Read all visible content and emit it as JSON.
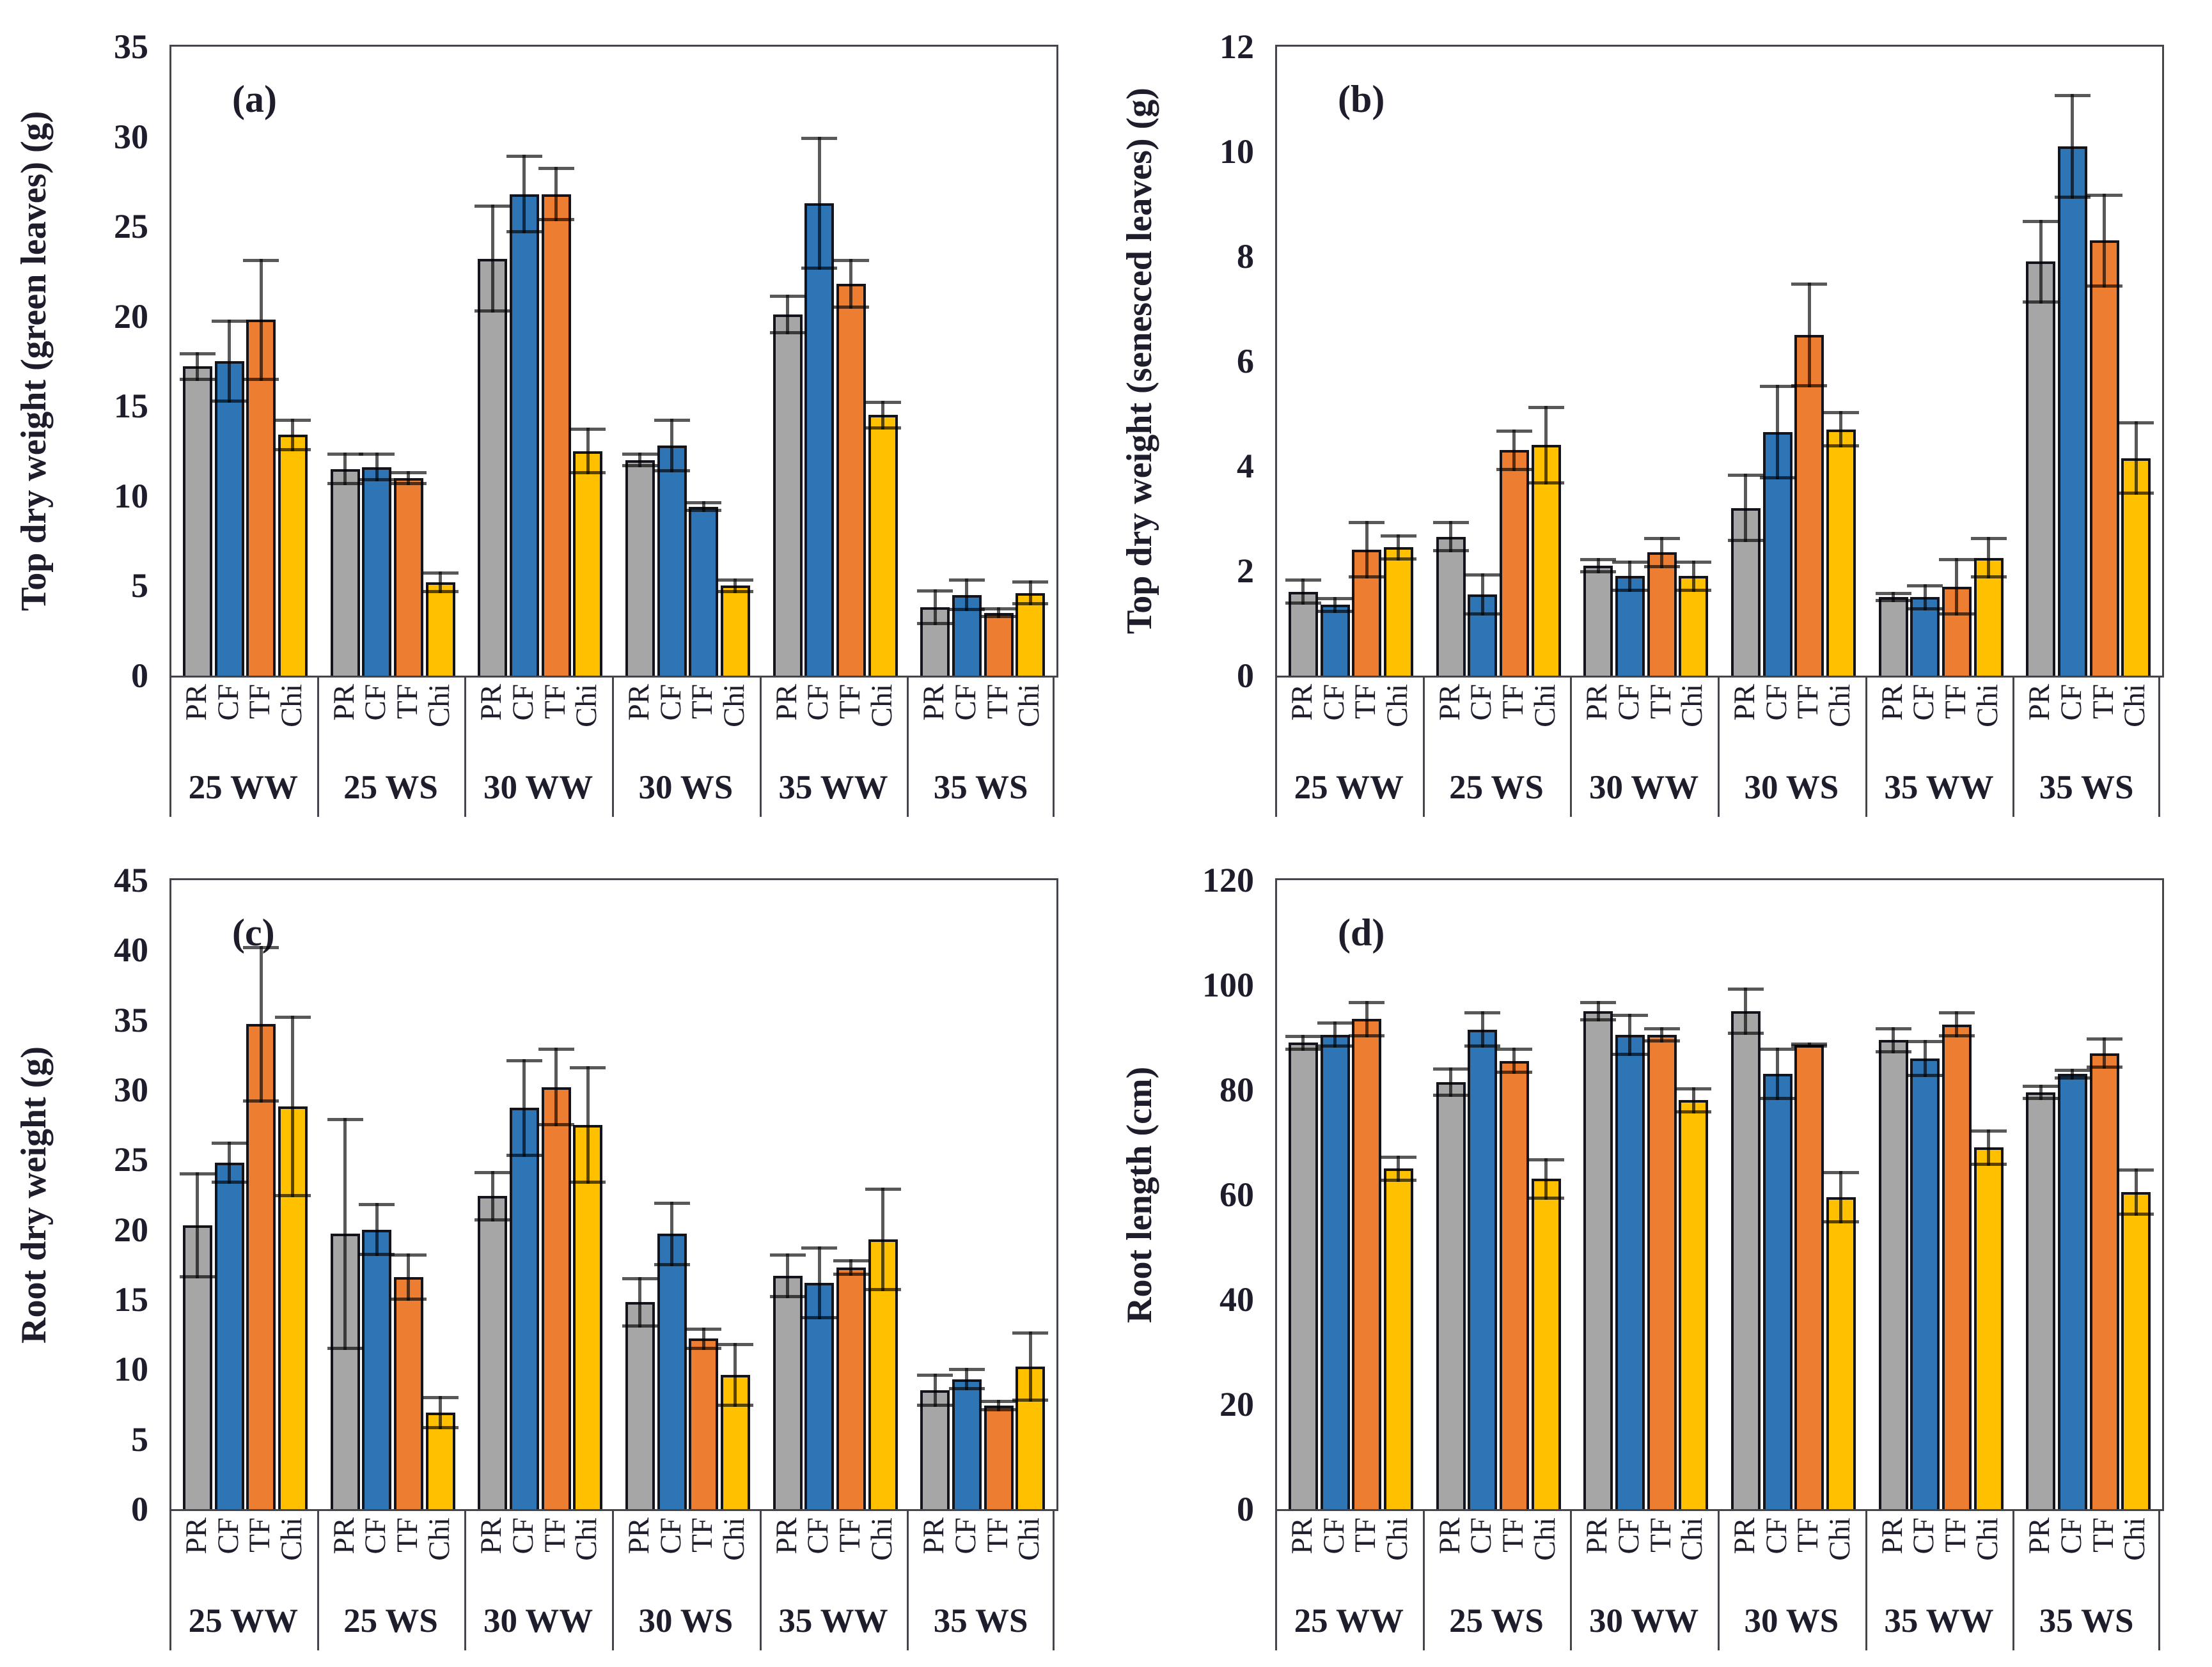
{
  "figure": {
    "description_visible_text_only": "Four-panel grouped bar figure",
    "panel_letters": [
      "(a)",
      "(b)",
      "(c)",
      "(d)"
    ]
  },
  "style": {
    "palette": {
      "PR": "#A6A6A6",
      "CF": "#2E75B6",
      "TF": "#ED7D31",
      "Chi": "#FFC000"
    },
    "bar_outline": "#14141c",
    "error_bar_color": "#595959",
    "axis_color": "#44444c",
    "text_color": "#1d1d2b"
  },
  "chart_data": [
    {
      "type": "bar",
      "panel_label": "(a)",
      "ylabel": "Top dry weight (green leaves) (g)",
      "ymax": 35,
      "yticks": [
        0,
        5,
        10,
        15,
        20,
        25,
        30,
        35
      ],
      "series_labels": [
        "PR",
        "CF",
        "TF",
        "Chi"
      ],
      "categories": [
        "25 WW",
        "25 WS",
        "30 WW",
        "30 WS",
        "35 WW",
        "35 WS"
      ],
      "groups": [
        {
          "label": "25 WW",
          "bars": [
            {
              "s": "PR",
              "value": 17.2,
              "err": 0.8
            },
            {
              "s": "CF",
              "value": 17.5,
              "err": 2.3
            },
            {
              "s": "TF",
              "value": 19.8,
              "err": 3.4
            },
            {
              "s": "Chi",
              "value": 13.4,
              "err": 0.9
            }
          ]
        },
        {
          "label": "25 WS",
          "bars": [
            {
              "s": "PR",
              "value": 11.5,
              "err": 0.9
            },
            {
              "s": "CF",
              "value": 11.6,
              "err": 0.8
            },
            {
              "s": "TF",
              "value": 11.0,
              "err": 0.4
            },
            {
              "s": "Chi",
              "value": 5.2,
              "err": 0.6
            }
          ]
        },
        {
          "label": "30 WW",
          "bars": [
            {
              "s": "PR",
              "value": 23.2,
              "err": 3.0
            },
            {
              "s": "CF",
              "value": 26.8,
              "err": 2.2
            },
            {
              "s": "TF",
              "value": 26.8,
              "err": 1.5
            },
            {
              "s": "Chi",
              "value": 12.5,
              "err": 1.3
            }
          ]
        },
        {
          "label": "30 WS",
          "bars": [
            {
              "s": "PR",
              "value": 12.0,
              "err": 0.4
            },
            {
              "s": "CF",
              "value": 12.8,
              "err": 1.5
            },
            {
              "s": "TF",
              "value": 9.4,
              "err": 0.3,
              "color_override": "#2E75B6"
            },
            {
              "s": "Chi",
              "value": 5.0,
              "err": 0.4
            }
          ]
        },
        {
          "label": "35 WW",
          "bars": [
            {
              "s": "PR",
              "value": 20.1,
              "err": 1.1
            },
            {
              "s": "CF",
              "value": 26.3,
              "err": 3.7
            },
            {
              "s": "TF",
              "value": 21.8,
              "err": 1.4
            },
            {
              "s": "Chi",
              "value": 14.5,
              "err": 0.8
            }
          ]
        },
        {
          "label": "35 WS",
          "bars": [
            {
              "s": "PR",
              "value": 3.8,
              "err": 1.0
            },
            {
              "s": "CF",
              "value": 4.5,
              "err": 0.9
            },
            {
              "s": "TF",
              "value": 3.5,
              "err": 0.3
            },
            {
              "s": "Chi",
              "value": 4.6,
              "err": 0.7
            }
          ]
        }
      ]
    },
    {
      "type": "bar",
      "panel_label": "(b)",
      "ylabel": "Top dry weight (senesced leaves) (g)",
      "ymax": 12,
      "yticks": [
        0,
        2,
        4,
        6,
        8,
        10,
        12
      ],
      "series_labels": [
        "PR",
        "CF",
        "TF",
        "Chi"
      ],
      "categories": [
        "25 WW",
        "25 WS",
        "30 WW",
        "30 WS",
        "35 WW",
        "35 WS"
      ],
      "groups": [
        {
          "label": "25 WW",
          "bars": [
            {
              "s": "PR",
              "value": 1.6,
              "err": 0.25
            },
            {
              "s": "CF",
              "value": 1.35,
              "err": 0.15
            },
            {
              "s": "TF",
              "value": 2.4,
              "err": 0.55
            },
            {
              "s": "Chi",
              "value": 2.45,
              "err": 0.25
            }
          ]
        },
        {
          "label": "25 WS",
          "bars": [
            {
              "s": "PR",
              "value": 2.65,
              "err": 0.3
            },
            {
              "s": "CF",
              "value": 1.55,
              "err": 0.4
            },
            {
              "s": "TF",
              "value": 4.3,
              "err": 0.4
            },
            {
              "s": "Chi",
              "value": 4.4,
              "err": 0.75
            }
          ]
        },
        {
          "label": "30 WW",
          "bars": [
            {
              "s": "PR",
              "value": 2.1,
              "err": 0.15
            },
            {
              "s": "CF",
              "value": 1.9,
              "err": 0.3
            },
            {
              "s": "TF",
              "value": 2.35,
              "err": 0.3
            },
            {
              "s": "Chi",
              "value": 1.9,
              "err": 0.3
            }
          ]
        },
        {
          "label": "30 WS",
          "bars": [
            {
              "s": "PR",
              "value": 3.2,
              "err": 0.65
            },
            {
              "s": "CF",
              "value": 4.65,
              "err": 0.9
            },
            {
              "s": "TF",
              "value": 6.5,
              "err": 1.0
            },
            {
              "s": "Chi",
              "value": 4.7,
              "err": 0.35
            }
          ]
        },
        {
          "label": "35 WW",
          "bars": [
            {
              "s": "PR",
              "value": 1.5,
              "err": 0.1
            },
            {
              "s": "CF",
              "value": 1.5,
              "err": 0.25
            },
            {
              "s": "TF",
              "value": 1.7,
              "err": 0.55
            },
            {
              "s": "Chi",
              "value": 2.25,
              "err": 0.4
            }
          ]
        },
        {
          "label": "35 WS",
          "bars": [
            {
              "s": "PR",
              "value": 7.9,
              "err": 0.8
            },
            {
              "s": "CF",
              "value": 10.1,
              "err": 1.0
            },
            {
              "s": "TF",
              "value": 8.3,
              "err": 0.9
            },
            {
              "s": "Chi",
              "value": 4.15,
              "err": 0.7
            }
          ]
        }
      ]
    },
    {
      "type": "bar",
      "panel_label": "(c)",
      "ylabel": "Root dry weight (g)",
      "ymax": 45,
      "yticks": [
        0,
        5,
        10,
        15,
        20,
        25,
        30,
        35,
        40,
        45
      ],
      "series_labels": [
        "PR",
        "CF",
        "TF",
        "Chi"
      ],
      "categories": [
        "25 WW",
        "25 WS",
        "30 WW",
        "30 WS",
        "35 WW",
        "35 WS"
      ],
      "groups": [
        {
          "label": "25 WW",
          "bars": [
            {
              "s": "PR",
              "value": 20.3,
              "err": 3.8
            },
            {
              "s": "CF",
              "value": 24.8,
              "err": 1.5
            },
            {
              "s": "TF",
              "value": 34.7,
              "err": 5.6
            },
            {
              "s": "Chi",
              "value": 28.8,
              "err": 6.5
            }
          ]
        },
        {
          "label": "25 WS",
          "bars": [
            {
              "s": "PR",
              "value": 19.7,
              "err": 8.3
            },
            {
              "s": "CF",
              "value": 20.0,
              "err": 1.9
            },
            {
              "s": "TF",
              "value": 16.6,
              "err": 1.7
            },
            {
              "s": "Chi",
              "value": 6.9,
              "err": 1.2
            }
          ]
        },
        {
          "label": "30 WW",
          "bars": [
            {
              "s": "PR",
              "value": 22.4,
              "err": 1.8
            },
            {
              "s": "CF",
              "value": 28.7,
              "err": 3.5
            },
            {
              "s": "TF",
              "value": 30.2,
              "err": 2.8
            },
            {
              "s": "Chi",
              "value": 27.5,
              "err": 4.2
            }
          ]
        },
        {
          "label": "30 WS",
          "bars": [
            {
              "s": "PR",
              "value": 14.8,
              "err": 1.8
            },
            {
              "s": "CF",
              "value": 19.7,
              "err": 2.3
            },
            {
              "s": "TF",
              "value": 12.2,
              "err": 0.8
            },
            {
              "s": "Chi",
              "value": 9.6,
              "err": 2.3
            }
          ]
        },
        {
          "label": "35 WW",
          "bars": [
            {
              "s": "PR",
              "value": 16.7,
              "err": 1.6
            },
            {
              "s": "CF",
              "value": 16.2,
              "err": 2.6
            },
            {
              "s": "TF",
              "value": 17.3,
              "err": 0.6
            },
            {
              "s": "Chi",
              "value": 19.3,
              "err": 3.7
            }
          ]
        },
        {
          "label": "35 WS",
          "bars": [
            {
              "s": "PR",
              "value": 8.5,
              "err": 1.2
            },
            {
              "s": "CF",
              "value": 9.3,
              "err": 0.8
            },
            {
              "s": "TF",
              "value": 7.4,
              "err": 0.4
            },
            {
              "s": "Chi",
              "value": 10.2,
              "err": 2.5
            }
          ]
        }
      ]
    },
    {
      "type": "bar",
      "panel_label": "(d)",
      "ylabel": "Root length (cm)",
      "ymax": 120,
      "yticks": [
        0,
        20,
        40,
        60,
        80,
        100,
        120
      ],
      "series_labels": [
        "PR",
        "CF",
        "TF",
        "Chi"
      ],
      "categories": [
        "25 WW",
        "25 WS",
        "30 WW",
        "30 WS",
        "35 WW",
        "35 WS"
      ],
      "groups": [
        {
          "label": "25 WW",
          "bars": [
            {
              "s": "PR",
              "value": 89.0,
              "err": 1.5
            },
            {
              "s": "CF",
              "value": 90.5,
              "err": 2.5
            },
            {
              "s": "TF",
              "value": 93.5,
              "err": 3.5
            },
            {
              "s": "Chi",
              "value": 65.0,
              "err": 2.5
            }
          ]
        },
        {
          "label": "25 WS",
          "bars": [
            {
              "s": "PR",
              "value": 81.5,
              "err": 2.8
            },
            {
              "s": "CF",
              "value": 91.5,
              "err": 3.5
            },
            {
              "s": "TF",
              "value": 85.5,
              "err": 2.5
            },
            {
              "s": "Chi",
              "value": 63.0,
              "err": 4.0
            }
          ]
        },
        {
          "label": "30 WW",
          "bars": [
            {
              "s": "PR",
              "value": 95.0,
              "err": 2.0
            },
            {
              "s": "CF",
              "value": 90.5,
              "err": 4.0
            },
            {
              "s": "TF",
              "value": 90.5,
              "err": 1.5
            },
            {
              "s": "Chi",
              "value": 78.0,
              "err": 2.5
            }
          ]
        },
        {
          "label": "30 WS",
          "bars": [
            {
              "s": "PR",
              "value": 95.0,
              "err": 4.5
            },
            {
              "s": "CF",
              "value": 83.0,
              "err": 5.0
            },
            {
              "s": "TF",
              "value": 88.5,
              "err": 0.5
            },
            {
              "s": "Chi",
              "value": 59.5,
              "err": 5.0
            }
          ]
        },
        {
          "label": "35 WW",
          "bars": [
            {
              "s": "PR",
              "value": 89.5,
              "err": 2.5
            },
            {
              "s": "CF",
              "value": 86.0,
              "err": 3.5
            },
            {
              "s": "TF",
              "value": 92.5,
              "err": 2.5
            },
            {
              "s": "Chi",
              "value": 69.0,
              "err": 3.5
            }
          ]
        },
        {
          "label": "35 WS",
          "bars": [
            {
              "s": "PR",
              "value": 79.5,
              "err": 1.5
            },
            {
              "s": "CF",
              "value": 83.0,
              "err": 1.0
            },
            {
              "s": "TF",
              "value": 87.0,
              "err": 3.0
            },
            {
              "s": "Chi",
              "value": 60.5,
              "err": 4.5
            }
          ]
        }
      ]
    }
  ]
}
